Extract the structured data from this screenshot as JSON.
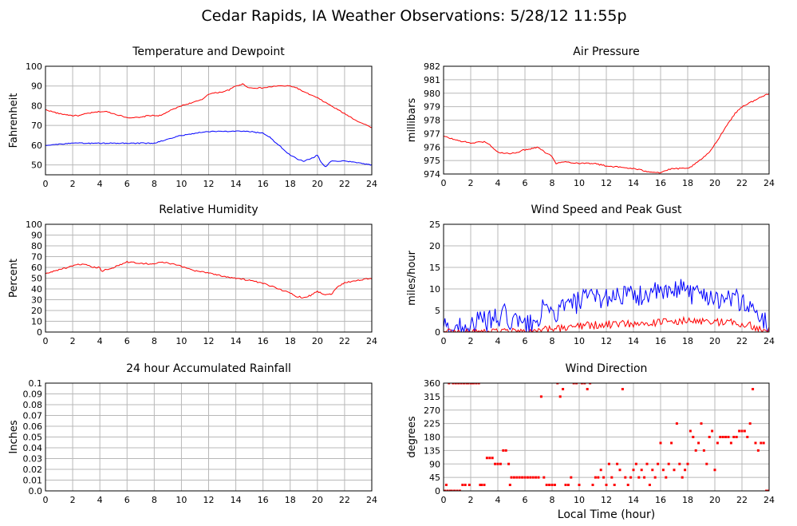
{
  "page": {
    "title": "Cedar Rapids, IA Weather Observations: 5/28/12 11:55p",
    "x_axis_label": "Local Time (hour)"
  },
  "colors": {
    "red": "#ff0000",
    "blue": "#0000ff",
    "grid": "#b8b8b8"
  },
  "chart_data": [
    {
      "id": "temp",
      "type": "line",
      "title": "Temperature and Dewpoint",
      "ylabel": "Fahrenheit",
      "xlim": [
        0,
        24
      ],
      "ylim": [
        45,
        100
      ],
      "xticks": [
        0,
        2,
        4,
        6,
        8,
        10,
        12,
        14,
        16,
        18,
        20,
        22,
        24
      ],
      "yticks": [
        50,
        60,
        70,
        80,
        90,
        100
      ],
      "grid": true,
      "noise": 0.25,
      "series": [
        {
          "color": "#ff0000",
          "x": [
            0,
            1,
            2,
            2.5,
            3,
            4,
            4.5,
            5,
            6,
            7,
            7.5,
            8,
            8.5,
            9,
            10,
            11,
            11.5,
            12,
            13,
            13.5,
            14,
            14.5,
            15,
            16,
            17,
            18,
            18.5,
            19,
            20,
            21,
            22,
            23,
            24
          ],
          "y": [
            78,
            76,
            75,
            75,
            76,
            77,
            77,
            76,
            74,
            74,
            75,
            75,
            75,
            77,
            80,
            82,
            83,
            86,
            87,
            88,
            90,
            91,
            89,
            89,
            90,
            90,
            89,
            87,
            84,
            80,
            76,
            72,
            69
          ]
        },
        {
          "color": "#0000ff",
          "x": [
            0,
            2,
            4,
            6,
            8,
            8.5,
            9,
            10,
            11,
            12,
            13,
            14,
            15,
            16,
            16.5,
            17,
            17.5,
            18,
            18.5,
            19,
            19.5,
            20,
            20.3,
            20.6,
            21,
            22,
            23,
            24
          ],
          "y": [
            60,
            61,
            61,
            61,
            61,
            62,
            63,
            65,
            66,
            67,
            67,
            67,
            67,
            66,
            64,
            61,
            58,
            55,
            53,
            52,
            53,
            55,
            51,
            49,
            52,
            52,
            51,
            50
          ]
        }
      ]
    },
    {
      "id": "pressure",
      "type": "line",
      "title": "Air Pressure",
      "ylabel": "millibars",
      "xlim": [
        0,
        24
      ],
      "ylim": [
        974,
        982
      ],
      "xticks": [
        0,
        2,
        4,
        6,
        8,
        10,
        12,
        14,
        16,
        18,
        20,
        22,
        24
      ],
      "yticks": [
        974,
        975,
        976,
        977,
        978,
        979,
        980,
        981,
        982
      ],
      "grid": true,
      "noise": 0.05,
      "series": [
        {
          "color": "#ff0000",
          "x": [
            0,
            1,
            2,
            3,
            3.5,
            4,
            5,
            6,
            6.5,
            7,
            7.5,
            8,
            8.3,
            9,
            10,
            11,
            12,
            13,
            14,
            15,
            16,
            16.5,
            17,
            18,
            18.5,
            19,
            19.5,
            20,
            20.5,
            21,
            21.5,
            22,
            23,
            24
          ],
          "y": [
            976.8,
            976.5,
            976.3,
            976.4,
            976.1,
            975.6,
            975.5,
            975.8,
            975.9,
            976.0,
            975.6,
            975.3,
            974.8,
            974.9,
            974.8,
            974.8,
            974.6,
            974.5,
            974.4,
            974.2,
            974.1,
            974.3,
            974.4,
            974.4,
            974.7,
            975.1,
            975.5,
            976.2,
            977.0,
            977.8,
            978.5,
            979.0,
            979.5,
            980.0
          ]
        }
      ]
    },
    {
      "id": "humidity",
      "type": "line",
      "title": "Relative Humidity",
      "ylabel": "Percent",
      "xlim": [
        0,
        24
      ],
      "ylim": [
        0,
        100
      ],
      "xticks": [
        0,
        2,
        4,
        6,
        8,
        10,
        12,
        14,
        16,
        18,
        20,
        22,
        24
      ],
      "yticks": [
        0,
        10,
        20,
        30,
        40,
        50,
        60,
        70,
        80,
        90,
        100
      ],
      "grid": true,
      "noise": 0.7,
      "series": [
        {
          "color": "#ff0000",
          "x": [
            0,
            1,
            2,
            2.5,
            3,
            3.5,
            4,
            4.05,
            4.5,
            5,
            6,
            7,
            8,
            8.5,
            9,
            10,
            11,
            12,
            13,
            14,
            15,
            16,
            17,
            18,
            18.5,
            19,
            19.5,
            20,
            20.5,
            21,
            21.5,
            22,
            23,
            24
          ],
          "y": [
            54,
            58,
            61,
            63,
            62,
            60,
            60,
            56,
            58,
            60,
            65,
            64,
            63,
            65,
            64,
            61,
            57,
            55,
            52,
            50,
            48,
            45,
            41,
            36,
            33,
            32,
            34,
            38,
            35,
            35,
            42,
            46,
            48,
            50
          ]
        }
      ]
    },
    {
      "id": "wind",
      "type": "line",
      "title": "Wind Speed and Peak Gust",
      "ylabel": "miles/hour",
      "xlim": [
        0,
        24
      ],
      "ylim": [
        0,
        25
      ],
      "xticks": [
        0,
        2,
        4,
        6,
        8,
        10,
        12,
        14,
        16,
        18,
        20,
        22,
        24
      ],
      "yticks": [
        0,
        5,
        10,
        15,
        20,
        25
      ],
      "grid": true,
      "series": [
        {
          "color": "#0000ff",
          "noise": 2.6,
          "x": [
            0,
            1,
            2,
            3,
            4,
            4.5,
            5,
            6,
            7,
            7.2,
            7.5,
            8,
            8.5,
            9,
            10,
            11,
            12,
            13,
            14,
            15,
            16,
            17,
            17.8,
            18,
            19,
            20,
            21,
            22,
            22.5,
            23,
            23.5,
            24
          ],
          "y": [
            1,
            1,
            2,
            2.5,
            3,
            4,
            2.5,
            1.5,
            2,
            6,
            4,
            4,
            5,
            6,
            7,
            8,
            8,
            9,
            8,
            9,
            9,
            9,
            12,
            9,
            9,
            8,
            8,
            7,
            6,
            5,
            3,
            1
          ]
        },
        {
          "color": "#ff0000",
          "noise": 0.9,
          "x": [
            0,
            6,
            6.5,
            7,
            7.5,
            8,
            9,
            10,
            11,
            12,
            13,
            14,
            15,
            16,
            17,
            18,
            19,
            20,
            21,
            22,
            22.5,
            23,
            24
          ],
          "y": [
            0,
            0,
            0.3,
            0.4,
            0.6,
            0.6,
            0.8,
            1.3,
            1.6,
            1.8,
            1.8,
            2.0,
            2.2,
            2.3,
            2.5,
            2.6,
            2.4,
            2.3,
            2.3,
            2.0,
            1.8,
            0.9,
            0.3
          ]
        }
      ]
    },
    {
      "id": "rain",
      "type": "line",
      "title": "24 hour Accumulated Rainfall",
      "ylabel": "Inches",
      "xlim": [
        0,
        24
      ],
      "ylim": [
        0,
        0.1
      ],
      "xticks": [
        0,
        2,
        4,
        6,
        8,
        10,
        12,
        14,
        16,
        18,
        20,
        22,
        24
      ],
      "yticks": [
        "0.0",
        "0.01",
        "0.02",
        "0.03",
        "0.04",
        "0.05",
        "0.06",
        "0.07",
        "0.08",
        "0.09",
        "0.1"
      ],
      "grid": true,
      "noise": 0,
      "series": [
        {
          "color": "#ff0000",
          "x": [
            0,
            24
          ],
          "y": [
            0,
            0
          ]
        }
      ]
    },
    {
      "id": "direction",
      "type": "scatter",
      "title": "Wind Direction",
      "ylabel": "degrees",
      "xlim": [
        0,
        24
      ],
      "ylim": [
        0,
        360
      ],
      "xticks": [
        0,
        2,
        4,
        6,
        8,
        10,
        12,
        14,
        16,
        18,
        20,
        22,
        24
      ],
      "yticks": [
        0,
        45,
        90,
        135,
        180,
        225,
        270,
        315,
        360
      ],
      "grid": true,
      "series": [
        {
          "color": "#ff0000",
          "points": [
            [
              0.1,
              0
            ],
            [
              0.2,
              20
            ],
            [
              0.3,
              0
            ],
            [
              0.4,
              360
            ],
            [
              0.5,
              0
            ],
            [
              0.6,
              0
            ],
            [
              0.7,
              360
            ],
            [
              0.8,
              0
            ],
            [
              0.9,
              360
            ],
            [
              1.0,
              0
            ],
            [
              1.1,
              360
            ],
            [
              1.2,
              0
            ],
            [
              1.3,
              360
            ],
            [
              1.4,
              20
            ],
            [
              1.5,
              360
            ],
            [
              1.6,
              20
            ],
            [
              1.7,
              360
            ],
            [
              1.8,
              360
            ],
            [
              1.9,
              20
            ],
            [
              2.0,
              360
            ],
            [
              2.1,
              360
            ],
            [
              2.2,
              360
            ],
            [
              2.4,
              360
            ],
            [
              2.6,
              360
            ],
            [
              2.7,
              20
            ],
            [
              2.8,
              20
            ],
            [
              3.0,
              20
            ],
            [
              3.2,
              110
            ],
            [
              3.4,
              110
            ],
            [
              3.6,
              110
            ],
            [
              3.8,
              90
            ],
            [
              4.0,
              90
            ],
            [
              4.2,
              90
            ],
            [
              4.4,
              135
            ],
            [
              4.6,
              135
            ],
            [
              4.8,
              90
            ],
            [
              4.9,
              20
            ],
            [
              5.0,
              45
            ],
            [
              5.2,
              45
            ],
            [
              5.4,
              45
            ],
            [
              5.6,
              45
            ],
            [
              5.8,
              45
            ],
            [
              6.0,
              45
            ],
            [
              6.2,
              45
            ],
            [
              6.4,
              45
            ],
            [
              6.6,
              45
            ],
            [
              6.8,
              45
            ],
            [
              7.0,
              45
            ],
            [
              7.2,
              315
            ],
            [
              7.4,
              45
            ],
            [
              7.6,
              20
            ],
            [
              7.8,
              20
            ],
            [
              8.0,
              20
            ],
            [
              8.2,
              20
            ],
            [
              8.4,
              360
            ],
            [
              8.6,
              315
            ],
            [
              8.8,
              340
            ],
            [
              9.0,
              20
            ],
            [
              9.2,
              20
            ],
            [
              9.4,
              45
            ],
            [
              9.6,
              360
            ],
            [
              9.8,
              360
            ],
            [
              10.0,
              20
            ],
            [
              10.2,
              360
            ],
            [
              10.4,
              360
            ],
            [
              10.6,
              340
            ],
            [
              10.8,
              360
            ],
            [
              11.0,
              20
            ],
            [
              11.2,
              45
            ],
            [
              11.4,
              45
            ],
            [
              11.6,
              70
            ],
            [
              11.8,
              45
            ],
            [
              12.0,
              20
            ],
            [
              12.2,
              90
            ],
            [
              12.4,
              45
            ],
            [
              12.6,
              20
            ],
            [
              12.8,
              90
            ],
            [
              13.0,
              70
            ],
            [
              13.2,
              340
            ],
            [
              13.4,
              45
            ],
            [
              13.6,
              20
            ],
            [
              13.8,
              45
            ],
            [
              14.0,
              70
            ],
            [
              14.2,
              90
            ],
            [
              14.4,
              45
            ],
            [
              14.6,
              70
            ],
            [
              14.8,
              45
            ],
            [
              15.0,
              90
            ],
            [
              15.2,
              20
            ],
            [
              15.4,
              70
            ],
            [
              15.6,
              45
            ],
            [
              15.8,
              90
            ],
            [
              16.0,
              160
            ],
            [
              16.2,
              70
            ],
            [
              16.4,
              45
            ],
            [
              16.6,
              90
            ],
            [
              16.8,
              160
            ],
            [
              17.0,
              70
            ],
            [
              17.2,
              225
            ],
            [
              17.4,
              90
            ],
            [
              17.6,
              45
            ],
            [
              17.8,
              70
            ],
            [
              18.0,
              90
            ],
            [
              18.2,
              200
            ],
            [
              18.4,
              180
            ],
            [
              18.6,
              135
            ],
            [
              18.8,
              160
            ],
            [
              19.0,
              225
            ],
            [
              19.2,
              135
            ],
            [
              19.4,
              90
            ],
            [
              19.6,
              180
            ],
            [
              19.8,
              200
            ],
            [
              20.0,
              70
            ],
            [
              20.2,
              160
            ],
            [
              20.4,
              180
            ],
            [
              20.6,
              180
            ],
            [
              20.8,
              180
            ],
            [
              21.0,
              180
            ],
            [
              21.2,
              160
            ],
            [
              21.4,
              180
            ],
            [
              21.6,
              180
            ],
            [
              21.8,
              200
            ],
            [
              22.0,
              200
            ],
            [
              22.2,
              200
            ],
            [
              22.4,
              180
            ],
            [
              22.6,
              225
            ],
            [
              22.8,
              340
            ],
            [
              23.0,
              160
            ],
            [
              23.2,
              135
            ],
            [
              23.4,
              160
            ],
            [
              23.6,
              160
            ],
            [
              23.8,
              0
            ],
            [
              23.9,
              0
            ]
          ]
        }
      ]
    }
  ]
}
